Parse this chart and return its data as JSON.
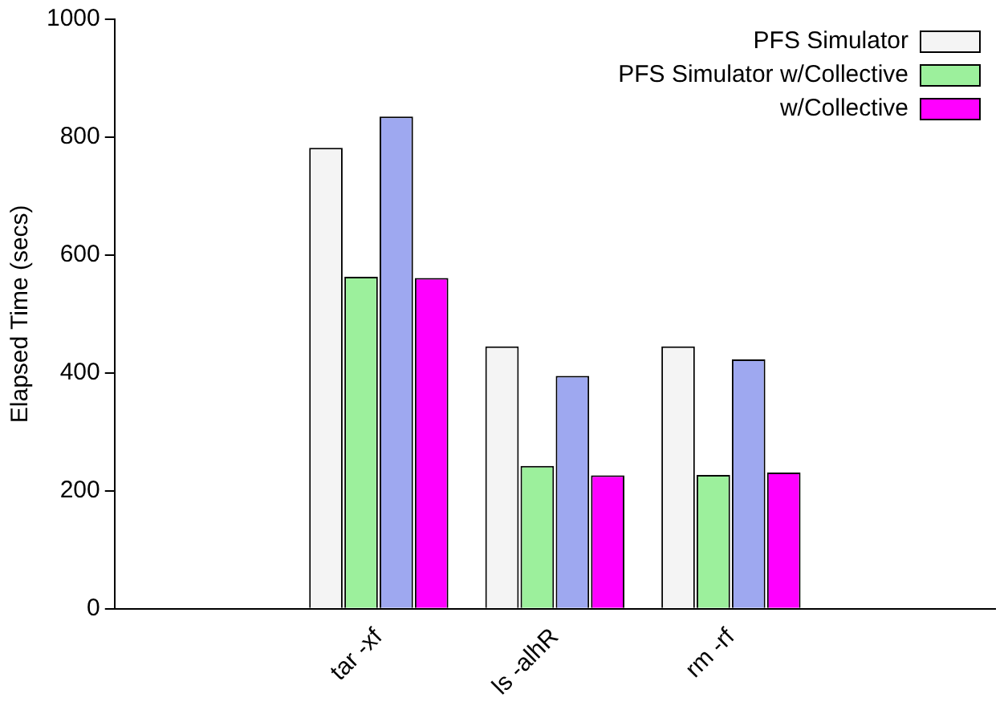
{
  "chart_data": {
    "type": "bar",
    "ylabel": "Elapsed Time (secs)",
    "categories": [
      null,
      "tar -xf",
      "ls -alhR",
      "rm -rf",
      null
    ],
    "series": [
      {
        "name": "PFS Simulator",
        "color": "#f4f4f4",
        "values": [
          null,
          782,
          445,
          445,
          null
        ]
      },
      {
        "name": "PFS Simulator w/Collective",
        "color": "#9cf09c",
        "values": [
          null,
          563,
          242,
          227,
          null
        ]
      },
      {
        "color": "#9ea8f0",
        "values": [
          null,
          835,
          395,
          423,
          null
        ]
      },
      {
        "name": "w/Collective",
        "color": "#ff00ff",
        "values": [
          null,
          561,
          226,
          231,
          null
        ]
      }
    ],
    "ylim": [
      0,
      1000
    ],
    "yticks": [
      0,
      200,
      400,
      600,
      800,
      1000
    ],
    "grid": false,
    "legend": "top right"
  }
}
